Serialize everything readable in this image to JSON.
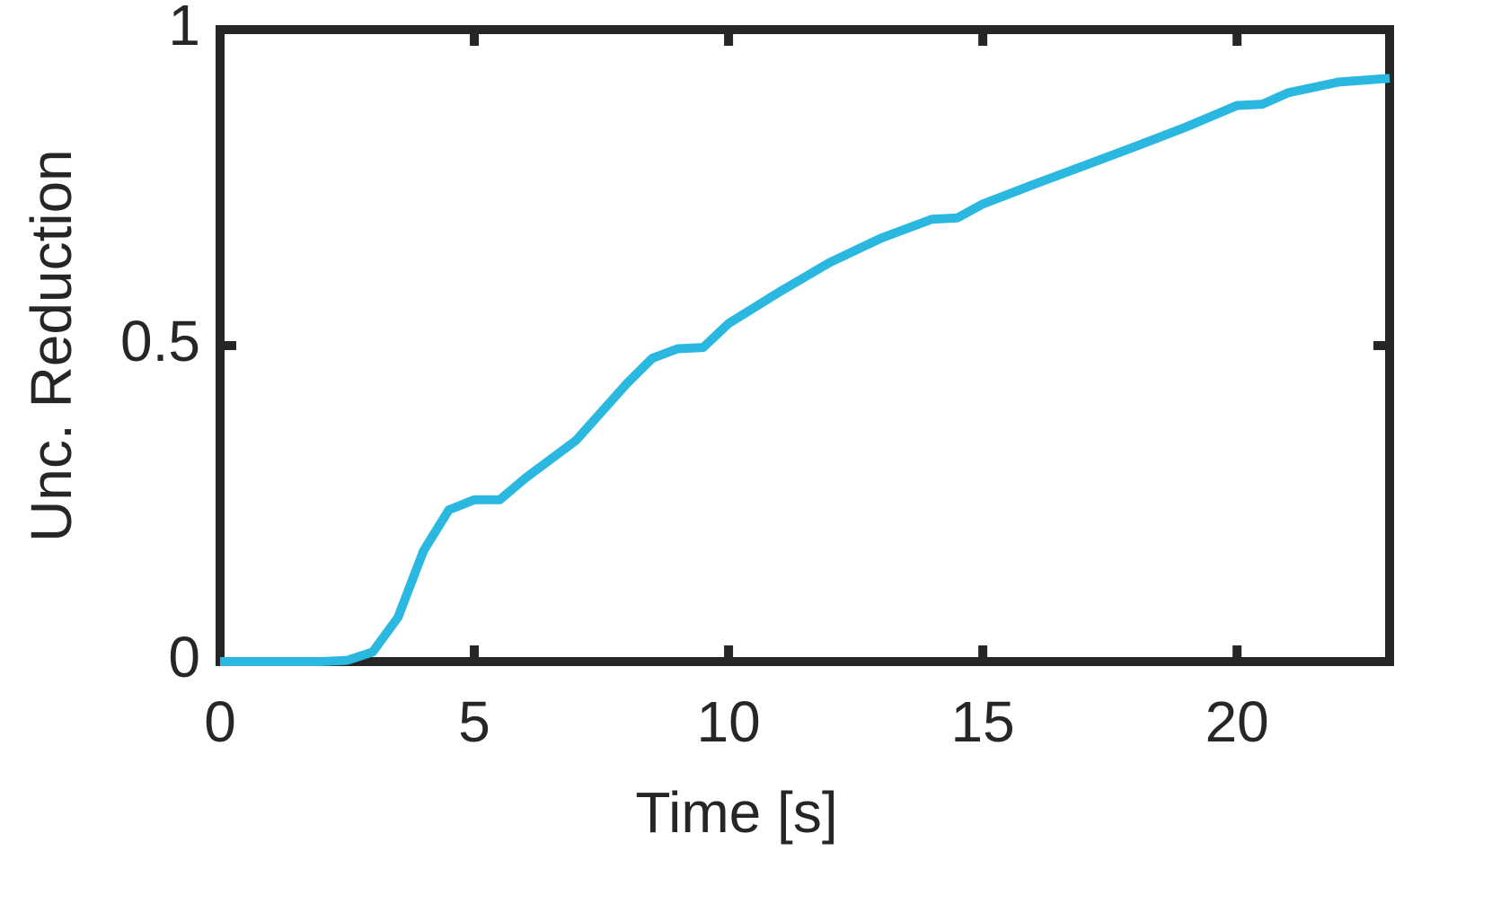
{
  "chart_data": {
    "type": "line",
    "xlabel": "Time [s]",
    "ylabel": "Unc. Reduction",
    "x": [
      0,
      2,
      2.5,
      3,
      3.5,
      4,
      4.5,
      5,
      5.5,
      6,
      7,
      8,
      8.5,
      9,
      9.5,
      10,
      11,
      12,
      13,
      14,
      14.5,
      15,
      16,
      17,
      18,
      19,
      20,
      20.5,
      21,
      22,
      23
    ],
    "values": [
      0,
      0,
      0.002,
      0.015,
      0.07,
      0.175,
      0.24,
      0.256,
      0.256,
      0.29,
      0.35,
      0.44,
      0.48,
      0.495,
      0.497,
      0.535,
      0.585,
      0.632,
      0.67,
      0.7,
      0.702,
      0.724,
      0.755,
      0.785,
      0.815,
      0.846,
      0.88,
      0.882,
      0.9,
      0.917,
      0.923
    ],
    "color": "#2bb8e0",
    "xlim": [
      0,
      23
    ],
    "xticks": [
      0,
      5,
      10,
      15,
      20
    ],
    "ylim": [
      0,
      1
    ],
    "yticks": [
      0,
      0.5,
      1
    ]
  }
}
